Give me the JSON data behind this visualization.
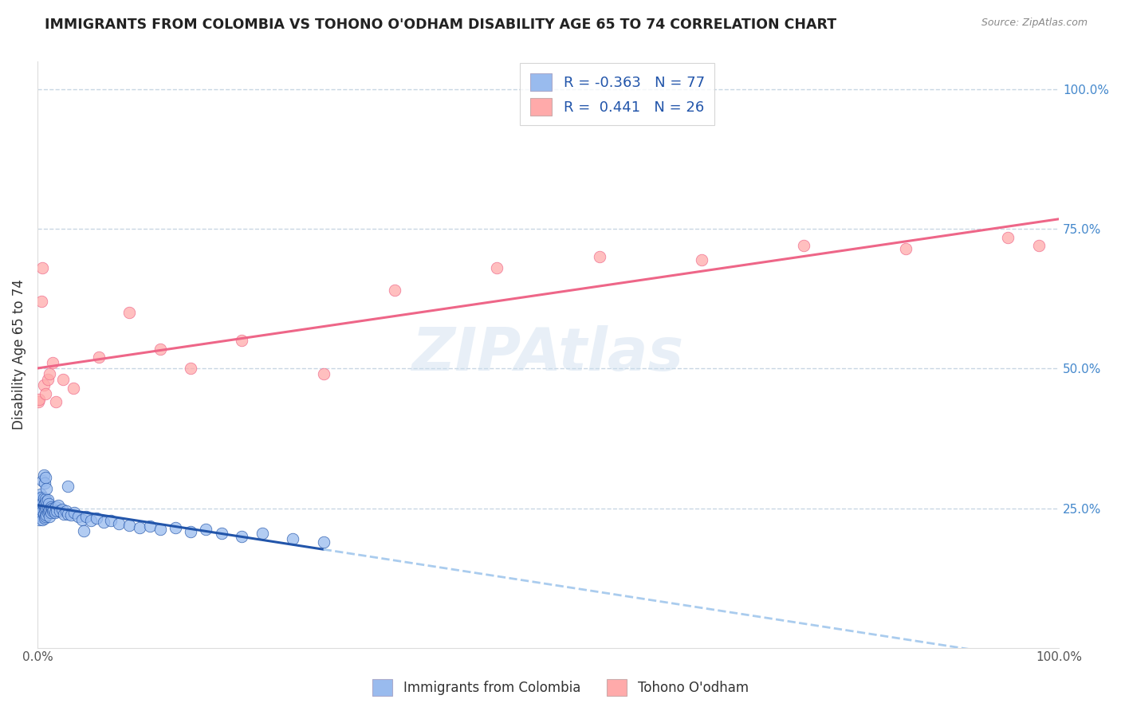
{
  "title": "IMMIGRANTS FROM COLOMBIA VS TOHONO O'ODHAM DISABILITY AGE 65 TO 74 CORRELATION CHART",
  "source": "Source: ZipAtlas.com",
  "ylabel": "Disability Age 65 to 74",
  "legend_label1": "Immigrants from Colombia",
  "legend_label2": "Tohono O'odham",
  "R1": -0.363,
  "N1": 77,
  "R2": 0.441,
  "N2": 26,
  "color_blue": "#99BBEE",
  "color_pink": "#FFAAAA",
  "color_blue_line": "#2255AA",
  "color_pink_line": "#EE6688",
  "color_dashed": "#AACCEE",
  "blue_intercept": 0.265,
  "blue_slope": -0.18,
  "pink_intercept": 0.435,
  "pink_slope": 0.285,
  "blue_points_x": [
    0.001,
    0.001,
    0.002,
    0.002,
    0.002,
    0.003,
    0.003,
    0.003,
    0.003,
    0.004,
    0.004,
    0.004,
    0.005,
    0.005,
    0.005,
    0.006,
    0.006,
    0.006,
    0.007,
    0.007,
    0.007,
    0.008,
    0.008,
    0.008,
    0.009,
    0.009,
    0.009,
    0.01,
    0.01,
    0.01,
    0.011,
    0.011,
    0.012,
    0.012,
    0.013,
    0.013,
    0.014,
    0.015,
    0.016,
    0.017,
    0.018,
    0.019,
    0.02,
    0.022,
    0.024,
    0.026,
    0.028,
    0.03,
    0.033,
    0.036,
    0.04,
    0.044,
    0.048,
    0.052,
    0.058,
    0.065,
    0.072,
    0.08,
    0.09,
    0.1,
    0.11,
    0.12,
    0.135,
    0.15,
    0.165,
    0.18,
    0.2,
    0.22,
    0.25,
    0.28,
    0.005,
    0.006,
    0.007,
    0.008,
    0.009,
    0.03,
    0.045
  ],
  "blue_points_y": [
    0.24,
    0.26,
    0.25,
    0.27,
    0.23,
    0.255,
    0.24,
    0.265,
    0.275,
    0.25,
    0.235,
    0.27,
    0.245,
    0.26,
    0.23,
    0.255,
    0.24,
    0.268,
    0.248,
    0.258,
    0.232,
    0.252,
    0.267,
    0.235,
    0.248,
    0.262,
    0.238,
    0.252,
    0.242,
    0.265,
    0.245,
    0.258,
    0.248,
    0.235,
    0.252,
    0.242,
    0.25,
    0.245,
    0.248,
    0.242,
    0.252,
    0.245,
    0.255,
    0.245,
    0.248,
    0.24,
    0.245,
    0.24,
    0.238,
    0.242,
    0.235,
    0.23,
    0.235,
    0.228,
    0.232,
    0.225,
    0.228,
    0.222,
    0.22,
    0.215,
    0.218,
    0.212,
    0.215,
    0.208,
    0.212,
    0.205,
    0.2,
    0.205,
    0.195,
    0.19,
    0.3,
    0.31,
    0.295,
    0.305,
    0.285,
    0.29,
    0.21
  ],
  "pink_points_x": [
    0.001,
    0.002,
    0.004,
    0.005,
    0.006,
    0.008,
    0.01,
    0.012,
    0.015,
    0.018,
    0.025,
    0.035,
    0.06,
    0.09,
    0.12,
    0.15,
    0.2,
    0.28,
    0.35,
    0.45,
    0.55,
    0.65,
    0.75,
    0.85,
    0.95,
    0.98
  ],
  "pink_points_y": [
    0.44,
    0.445,
    0.62,
    0.68,
    0.47,
    0.455,
    0.48,
    0.49,
    0.51,
    0.44,
    0.48,
    0.465,
    0.52,
    0.6,
    0.535,
    0.5,
    0.55,
    0.49,
    0.64,
    0.68,
    0.7,
    0.695,
    0.72,
    0.715,
    0.735,
    0.72
  ]
}
